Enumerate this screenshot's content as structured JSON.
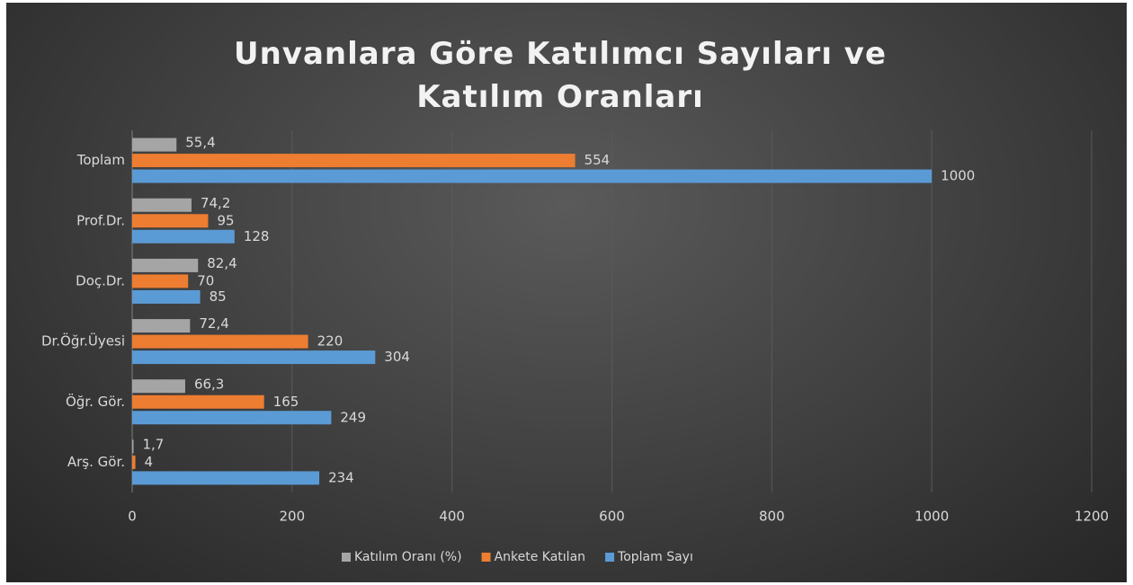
{
  "chart_data": {
    "type": "hbar",
    "title": "Unvanlara Göre Katılımcı Sayıları ve  Katılım Oranları",
    "categories": [
      "Toplam",
      "Prof.Dr.",
      "Doç.Dr.",
      "Dr.Öğr.Üyesi",
      "Öğr. Gör.",
      "Arş. Gör."
    ],
    "series": [
      {
        "name": "Katılım Oranı (%)",
        "color": "#a5a5a5",
        "values": [
          55.4,
          74.2,
          82.4,
          72.4,
          66.3,
          1.7
        ],
        "value_labels": [
          "55,4",
          "74,2",
          "82,4",
          "72,4",
          "66,3",
          "1,7"
        ]
      },
      {
        "name": "Ankete Katılan",
        "color": "#ed7d31",
        "values": [
          554,
          95,
          70,
          220,
          165,
          4
        ]
      },
      {
        "name": "Toplam Sayı",
        "color": "#5b9bd5",
        "values": [
          1000,
          128,
          85,
          304,
          249,
          234
        ]
      }
    ],
    "xlim": [
      0,
      1200
    ],
    "xticks": [
      0,
      200,
      400,
      600,
      800,
      1000,
      1200
    ],
    "grid": true,
    "legend": "bottom"
  }
}
